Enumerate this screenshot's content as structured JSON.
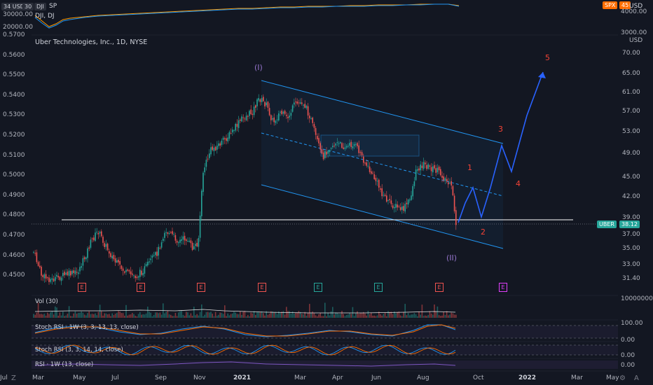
{
  "overlay": {
    "row1": [
      "34",
      "USD",
      "30",
      "DJI",
      "SP"
    ],
    "dji_label": "DJI, DJ",
    "left_ticks": [
      "30000.00",
      "20000.00"
    ],
    "right_badge": "SPX",
    "right_badge_val": "45",
    "right_usd": "USD",
    "right_ticks": [
      "4000.00",
      "3000.00"
    ]
  },
  "main": {
    "title": "Uber Technologies, Inc., 1D, NYSE",
    "left_axis": [
      "0.5700",
      "0.5600",
      "0.5500",
      "0.5400",
      "0.5300",
      "0.5200",
      "0.5100",
      "0.5000",
      "0.4900",
      "0.4800",
      "0.4700",
      "0.4600",
      "0.4500"
    ],
    "right_axis": [
      "USD",
      "70.00",
      "65.00",
      "61.00",
      "57.00",
      "53.00",
      "49.00",
      "45.00",
      "42.00",
      "39.00",
      "37.00",
      "35.00",
      "33.00",
      "31.40"
    ],
    "price_tag_symbol": "UBER",
    "price_tag_value": "38.12",
    "earnings_markers": [
      "E",
      "E",
      "E",
      "E",
      "E",
      "E",
      "E",
      "E"
    ],
    "waves": {
      "w_I": "(I)",
      "w_II": "(II)",
      "w1": "1",
      "w2": "2",
      "w3": "3",
      "w4": "4",
      "w5": "5"
    }
  },
  "indicators": {
    "vol": "Vol (30)",
    "vol_axis": "100000000",
    "stoch_1w": "Stoch RSI · 1W (3, 3, 13, 13, close)",
    "stoch_1w_axis": [
      "100.00",
      "0.00"
    ],
    "stoch": "Stoch RSI (3, 3, 14, 14, close)",
    "stoch_axis": "0.00",
    "rsi_1w": "RSI · 1W (13, close)",
    "rsi_axis": "0.00"
  },
  "time_axis": [
    "Mar",
    "May",
    "Jul",
    "Sep",
    "Nov",
    "2021",
    "Mar",
    "Apr",
    "Jun",
    "Aug",
    "Oct",
    "2022",
    "Mar",
    "May",
    "Jul"
  ],
  "colors": {
    "bg": "#131722",
    "up": "#26a69a",
    "down": "#ef5350",
    "channel": "#2196f3",
    "wave_red": "#f44336",
    "wave_purple": "#9575cd"
  }
}
